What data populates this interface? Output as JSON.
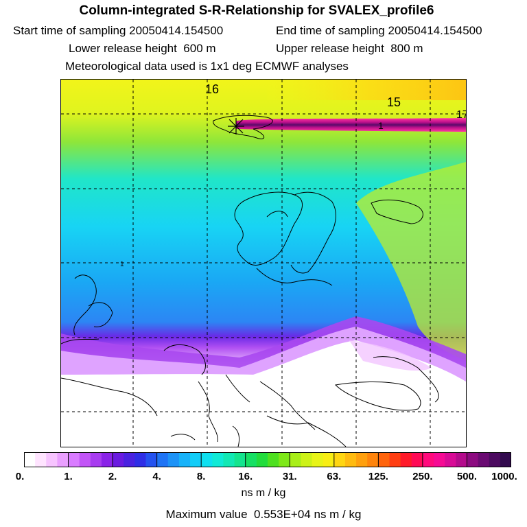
{
  "title": "Column-integrated S-R-Relationship for SVALEX_profile6",
  "start_label": "Start time of sampling",
  "start_value": "20050414.154500",
  "end_label": "End time of sampling",
  "end_value": "20050414.154500",
  "lower_label": "Lower release height",
  "lower_value": "600 m",
  "upper_label": "Upper release height",
  "upper_value": "800 m",
  "met_line": "Meteorological data used is 1x1 deg ECMWF analyses",
  "map": {
    "contour_labels": [
      "16",
      "15",
      "1",
      "1",
      "17"
    ]
  },
  "colorbar": {
    "tick_labels": [
      "0.",
      "1.",
      "2.",
      "4.",
      "8.",
      "16.",
      "31.",
      "63.",
      "125.",
      "250.",
      "500.",
      "1000."
    ],
    "colors": [
      "#ffffff",
      "#ffe4ff",
      "#f7c4ff",
      "#eaa0ff",
      "#d97cff",
      "#c255f7",
      "#a83cf0",
      "#8a23e8",
      "#6a1be0",
      "#4a22e0",
      "#2f2ee6",
      "#2452f0",
      "#1f74f5",
      "#1d93f7",
      "#18b2f9",
      "#12cdf8",
      "#0ee0f0",
      "#10ead6",
      "#12e8b4",
      "#14e48e",
      "#16e064",
      "#22dc3c",
      "#4ee020",
      "#7ee818",
      "#a8ee18",
      "#cdf218",
      "#e8f418",
      "#f8ee14",
      "#ffd612",
      "#ffbb10",
      "#ffa00e",
      "#ff840c",
      "#ff640c",
      "#ff3e12",
      "#ff1a2a",
      "#ff0a55",
      "#ff0a7c",
      "#f60a94",
      "#d80a96",
      "#b40a8c",
      "#8c0a80",
      "#6a0a72",
      "#4c0a60",
      "#320a4e"
    ]
  },
  "units": "ns m / kg",
  "max_label": "Maximum value",
  "max_value": "0.553E+04 ns m / kg"
}
